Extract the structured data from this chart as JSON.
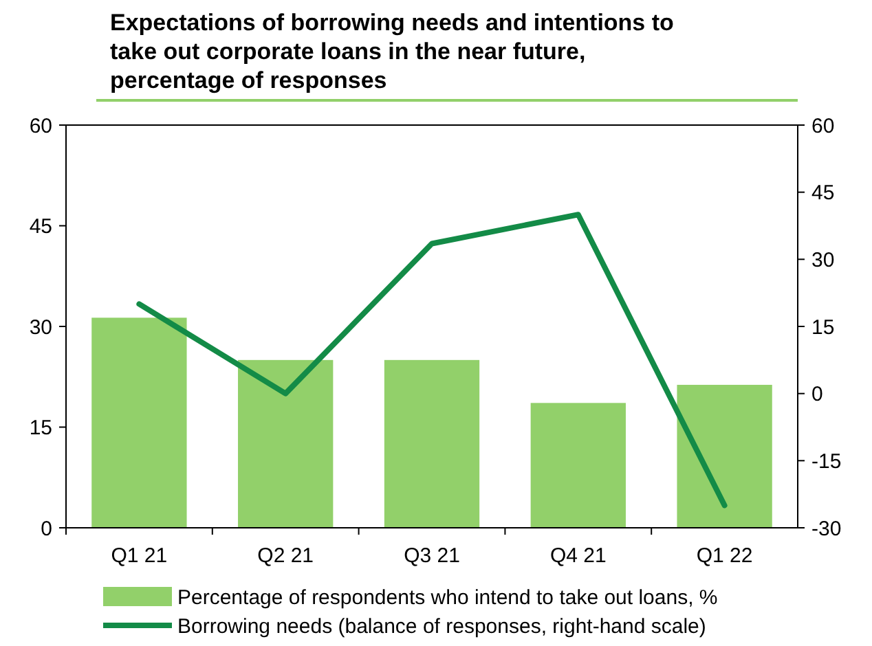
{
  "chart_data": {
    "type": "bar",
    "title": "Expectations of borrowing needs and intentions to take out corporate loans in the near future, percentage of responses",
    "categories": [
      "Q1 21",
      "Q2 21",
      "Q3 21",
      "Q4 21",
      "Q1 22"
    ],
    "series": [
      {
        "name": "Percentage of respondents who intend to take out loans, %",
        "color": "#92d06a",
        "values": [
          31.3,
          25,
          25,
          18.6,
          21.3
        ]
      },
      {
        "name": "Borrowing needs (balance of responses, right-hand scale)",
        "type": "line",
        "axis": "y2",
        "color": "#138b47",
        "values": [
          20,
          0,
          33.5,
          40,
          -25
        ]
      }
    ],
    "ylim": [
      0,
      60
    ],
    "yticks": [
      0,
      15,
      30,
      45,
      60
    ],
    "y2lim": [
      -30,
      60
    ],
    "y2ticks": [
      -30,
      -15,
      0,
      15,
      30,
      45,
      60
    ],
    "grid": false,
    "legend": "bottom"
  }
}
